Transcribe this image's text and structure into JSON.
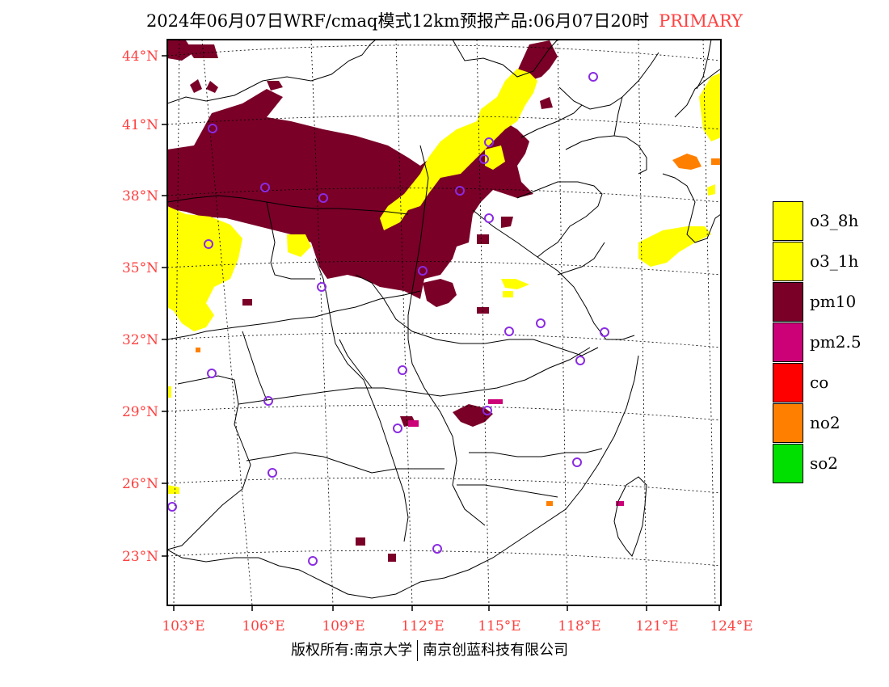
{
  "header": {
    "title": "2024年06月07日WRF/cmaq模式12km预报产品:06月07日20时",
    "tag": "PRIMARY"
  },
  "axes": {
    "lat_labels": [
      "44°N",
      "41°N",
      "38°N",
      "35°N",
      "32°N",
      "29°N",
      "26°N",
      "23°N"
    ],
    "lon_labels": [
      "103°E",
      "106°E",
      "109°E",
      "112°E",
      "115°E",
      "118°E",
      "121°E",
      "124°E"
    ]
  },
  "legend": {
    "items": [
      {
        "label": "o3_8h",
        "color": "#ffff00"
      },
      {
        "label": "o3_1h",
        "color": "#ffff00"
      },
      {
        "label": "pm10",
        "color": "#7a0028"
      },
      {
        "label": "pm2.5",
        "color": "#cc0077"
      },
      {
        "label": "co",
        "color": "#ff0000"
      },
      {
        "label": "no2",
        "color": "#ff8000"
      },
      {
        "label": "so2",
        "color": "#00e000"
      }
    ]
  },
  "footer": {
    "left": "版权所有:南京大学",
    "right": "南京创蓝科技有限公司"
  },
  "colors": {
    "pm10": "#7a0028",
    "o3": "#ffff00",
    "pm25": "#cc0077",
    "no2": "#ff8000",
    "station": "#8a2be2",
    "label": "#ff4040"
  }
}
